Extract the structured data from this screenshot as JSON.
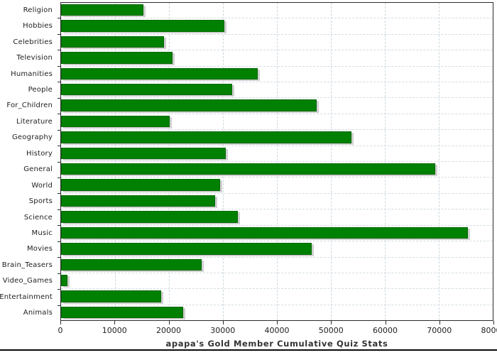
{
  "chart_data": {
    "type": "bar",
    "orientation": "horizontal",
    "title": "apapa's Gold Member Cumulative Quiz Stats",
    "categories": [
      "Religion",
      "Hobbies",
      "Celebrities",
      "Television",
      "Humanities",
      "People",
      "For_Children",
      "Literature",
      "Geography",
      "History",
      "General",
      "World",
      "Sports",
      "Science",
      "Music",
      "Movies",
      "Brain_Teasers",
      "Video_Games",
      "Entertainment",
      "Animals"
    ],
    "values": [
      15200,
      30300,
      19100,
      20700,
      36400,
      31700,
      47400,
      20100,
      53800,
      30500,
      69400,
      29500,
      28500,
      32800,
      75400,
      46400,
      26000,
      1200,
      18600,
      22600
    ],
    "xlabel": "",
    "ylabel": "",
    "xlim": [
      0,
      80000
    ],
    "xticks": [
      0,
      10000,
      20000,
      30000,
      40000,
      50000,
      60000,
      70000,
      80000
    ],
    "grid": "dashed",
    "legend": "none",
    "colors": {
      "bar": "#008000",
      "bar_border": "#006800",
      "bar_shadow": "#d0d0d0",
      "gridline": "#ccd7de",
      "axis": "#2b2b2b",
      "tick_label": "#222222",
      "title": "#333333",
      "background": "#ffffff"
    }
  }
}
